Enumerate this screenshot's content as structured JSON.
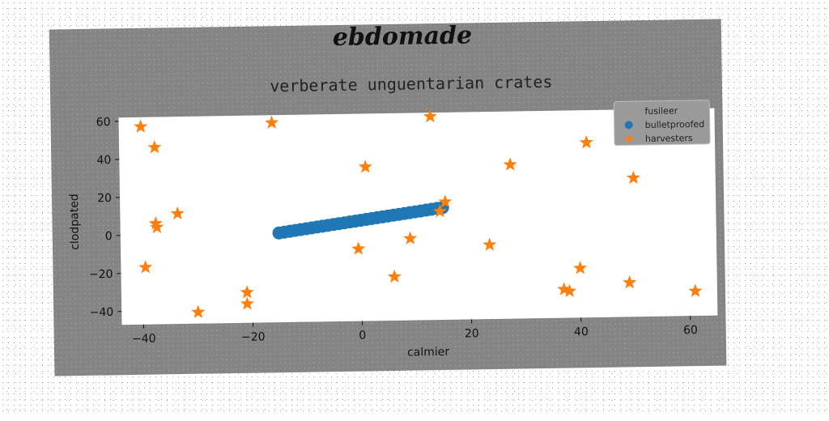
{
  "chart_data": {
    "type": "scatter",
    "suptitle": "ebdomade",
    "title": "verberate unguentarian crates",
    "xlabel": "calmier",
    "ylabel": "clodpated",
    "xlim": [
      -44,
      65
    ],
    "ylim": [
      -47,
      62
    ],
    "xticks": [
      -40,
      -20,
      0,
      20,
      40,
      60
    ],
    "yticks": [
      -40,
      -20,
      0,
      20,
      40,
      60
    ],
    "legend": {
      "position": "top-right",
      "entries": [
        "fusileer",
        "bulletproofed",
        "harvesters"
      ]
    },
    "colors": {
      "bulletproofed": "#1f77b4",
      "harvesters": "#ff7f0e",
      "axes_bg": "#ffffff",
      "figure_bg": "#858585"
    },
    "series": [
      {
        "name": "fusileer",
        "marker": "none",
        "x": [],
        "y": []
      },
      {
        "name": "bulletproofed",
        "marker": "circle",
        "x": [
          -15,
          -14,
          -13,
          -12,
          -11,
          -10,
          -9,
          -8,
          -7,
          -6,
          -5,
          -4,
          -3,
          -2,
          -1,
          0,
          1,
          2,
          3,
          4,
          5,
          6,
          7,
          8,
          9,
          10,
          11,
          12,
          13,
          14,
          15
        ],
        "y": [
          0.0,
          0.4,
          0.8,
          1.2,
          1.6,
          2.0,
          2.4,
          2.8,
          3.2,
          3.6,
          4.0,
          4.4,
          4.8,
          5.2,
          5.6,
          6.0,
          6.4,
          6.8,
          7.2,
          7.6,
          8.0,
          8.4,
          8.8,
          9.2,
          9.6,
          10.0,
          10.4,
          10.8,
          11.2,
          11.6,
          12.0
        ]
      },
      {
        "name": "harvesters",
        "marker": "star",
        "x": [
          -40,
          -37.5,
          -37.5,
          -37.3,
          -33.5,
          -39.5,
          -30,
          -21,
          -21,
          -16,
          1,
          13,
          15.5,
          14.5,
          -0.5,
          9,
          6,
          23.5,
          27.5,
          37,
          38,
          40,
          41.5,
          49,
          50,
          61
        ],
        "y": [
          57,
          46,
          6,
          4,
          11,
          -17,
          -41,
          -31,
          -37,
          58,
          34,
          60,
          15,
          10,
          -9,
          -4,
          -24,
          -8,
          34,
          -32,
          -33,
          -21,
          45,
          -29,
          26,
          -34
        ]
      }
    ]
  }
}
